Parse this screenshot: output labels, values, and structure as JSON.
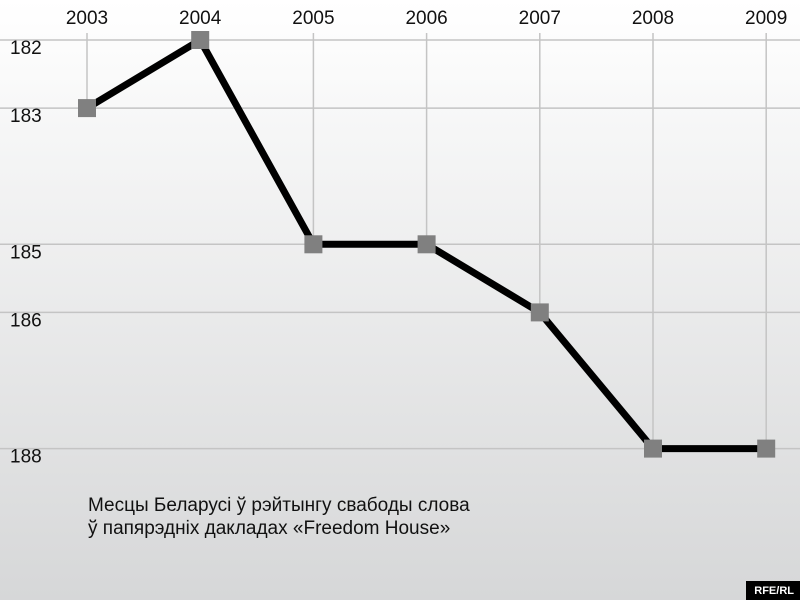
{
  "chart_data": {
    "type": "line",
    "x": [
      "2003",
      "2004",
      "2005",
      "2006",
      "2007",
      "2008",
      "2009"
    ],
    "values": [
      183,
      182,
      185,
      185,
      186,
      188,
      188
    ],
    "yticks": [
      182,
      183,
      185,
      186,
      188
    ],
    "ylim": [
      182,
      188
    ],
    "y_inverted": true,
    "grid": true,
    "title": "Месцы Беларусі ў рэйтынгу свабоды слова ў папярэдніх дакладах «Freedom House»",
    "title_lines": [
      "Месцы Беларусі ў рэйтынгу свабоды слова",
      "ў папярэдніх дакладах «Freedom House»"
    ],
    "colors": {
      "line": "#000000",
      "marker": "#808080",
      "grid": "#c4c4c4",
      "bg_top": "#ffffff",
      "bg_bottom": "#d6d7d8"
    }
  },
  "source_logo": "RFE/RL"
}
